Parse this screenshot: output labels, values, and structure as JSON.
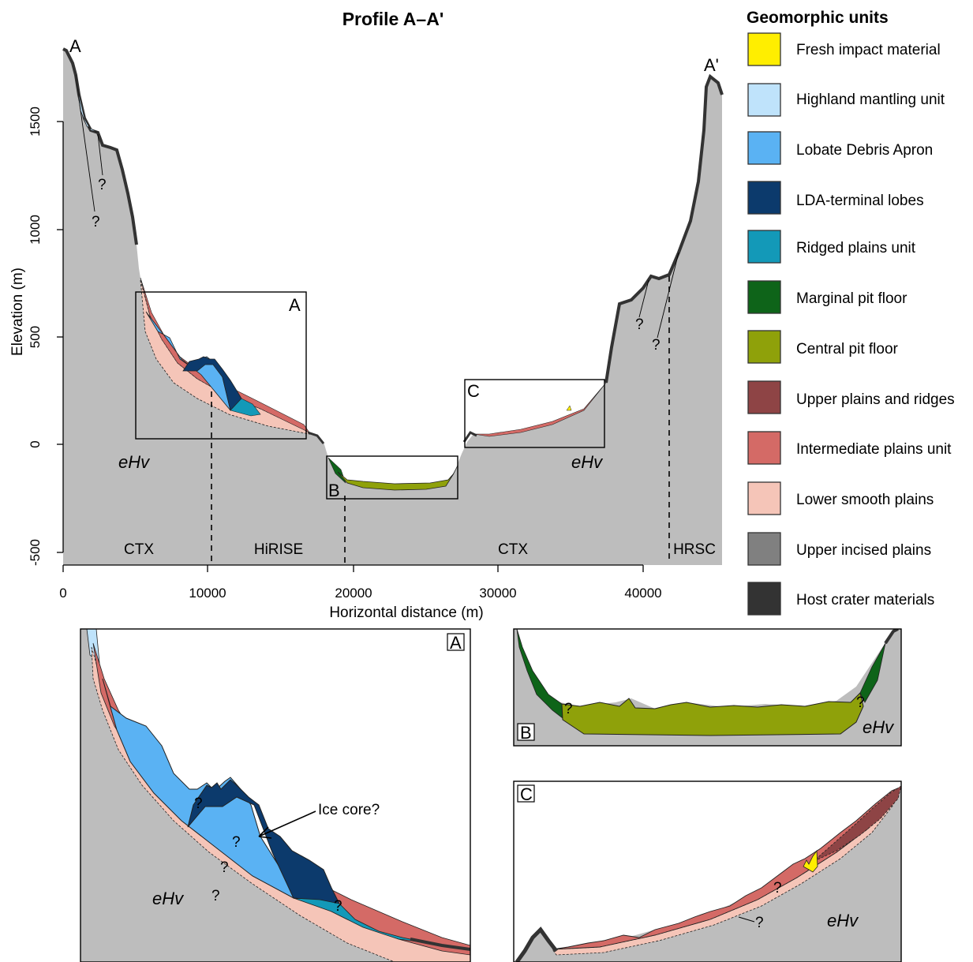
{
  "profile": {
    "title": "Profile A–A'",
    "xlabel": "Horizontal distance (m)",
    "ylabel": "Elevation (m)",
    "x_ticks": [
      "0",
      "10000",
      "20000",
      "30000",
      "40000"
    ],
    "y_ticks": [
      "1500",
      "1000",
      "500",
      "0",
      "-500"
    ],
    "endpoint_start": "A",
    "endpoint_end": "A'",
    "box_labels": [
      "A",
      "B",
      "C"
    ],
    "sources": [
      "CTX",
      "HiRISE",
      "CTX",
      "HRSC"
    ],
    "unit_label": "eHv",
    "uncertain_mark": "?"
  },
  "legend": {
    "title": "Geomorphic units",
    "items": [
      {
        "label": "Fresh impact material",
        "color": "#ffee00"
      },
      {
        "label": "Highland mantling unit",
        "color": "#bfe3fb"
      },
      {
        "label": "Lobate Debris Apron",
        "color": "#5ab2f3"
      },
      {
        "label": "LDA-terminal lobes",
        "color": "#0c3a6c"
      },
      {
        "label": "Ridged plains unit",
        "color": "#1399b8"
      },
      {
        "label": "Marginal pit floor",
        "color": "#0e6419"
      },
      {
        "label": "Central pit floor",
        "color": "#8fa10a"
      },
      {
        "label": "Upper plains and ridges",
        "color": "#8e4445"
      },
      {
        "label": "Intermediate plains unit",
        "color": "#d46a66"
      },
      {
        "label": "Lower smooth plains",
        "color": "#f5c5b8"
      },
      {
        "label": "Upper incised plains",
        "color": "#808080"
      },
      {
        "label": "Host crater materials",
        "color": "#333333"
      }
    ]
  },
  "inset_a": {
    "label": "A",
    "annotation": "Ice core?",
    "unit_label": "eHv",
    "uncertain_mark": "?"
  },
  "inset_b": {
    "label": "B",
    "unit_label": "eHv",
    "uncertain_mark": "?"
  },
  "inset_c": {
    "label": "C",
    "unit_label": "eHv",
    "uncertain_mark": "?"
  }
}
